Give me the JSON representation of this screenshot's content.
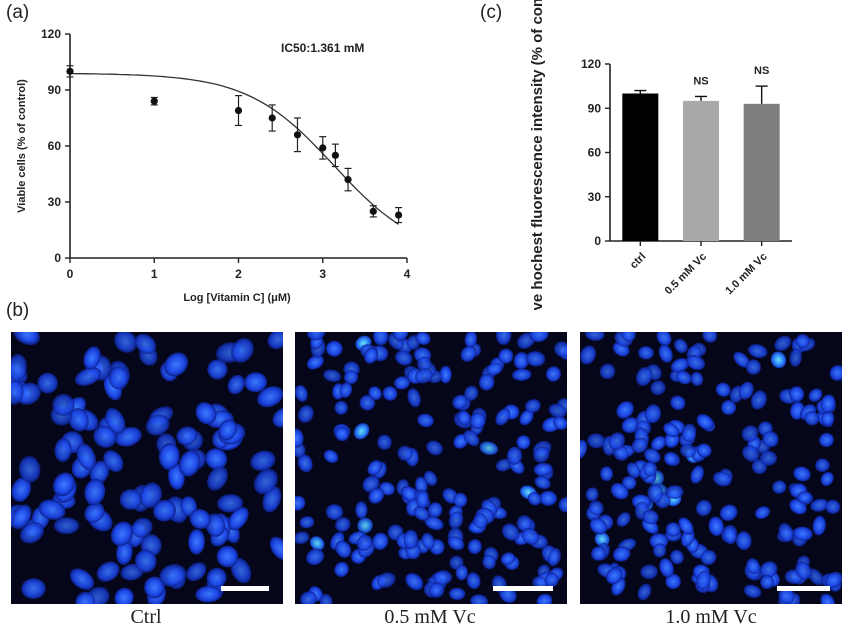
{
  "panels": {
    "a": "(a)",
    "b": "(b)",
    "c": "(c)"
  },
  "chart_data": [
    {
      "type": "scatter",
      "panel": "(a)",
      "annotation": "IC50:1.361 mM",
      "xlabel": "Log [Vitamin C] (μM)",
      "ylabel": "Viable cells (% of control)",
      "xlim": [
        0,
        4
      ],
      "ylim": [
        0,
        120
      ],
      "xticks": [
        0,
        1,
        2,
        3,
        4
      ],
      "yticks": [
        0,
        30,
        60,
        90,
        120
      ],
      "points": [
        {
          "x": 0,
          "y": 100,
          "err": 3
        },
        {
          "x": 1,
          "y": 84,
          "err": 2
        },
        {
          "x": 2,
          "y": 79,
          "err": 8
        },
        {
          "x": 2.4,
          "y": 75,
          "err": 7
        },
        {
          "x": 2.7,
          "y": 66,
          "err": 9
        },
        {
          "x": 3,
          "y": 59,
          "err": 6
        },
        {
          "x": 3.15,
          "y": 55,
          "err": 6
        },
        {
          "x": 3.3,
          "y": 42,
          "err": 6
        },
        {
          "x": 3.6,
          "y": 25,
          "err": 3
        },
        {
          "x": 3.9,
          "y": 23,
          "err": 4
        }
      ],
      "fit": {
        "top": 99,
        "bottom": 0,
        "log_ic50": 3.134,
        "hill": -0.85
      }
    },
    {
      "type": "bar",
      "panel": "(c)",
      "categories": [
        "ctrl",
        "0.5 mM Vc",
        "1.0 mM Vc"
      ],
      "values": [
        100,
        95,
        93
      ],
      "errors": [
        2,
        3,
        12
      ],
      "labels": [
        "",
        "NS",
        "NS"
      ],
      "colors": [
        "#000000",
        "#a9a9ab",
        "#7d7d7f"
      ],
      "ylabel": "Relative hochest fluorescence intensity (% of control)",
      "ylim": [
        0,
        120
      ],
      "yticks": [
        0,
        30,
        60,
        90,
        120
      ]
    }
  ],
  "micrographs": [
    {
      "caption": "Ctrl"
    },
    {
      "caption": "0.5 mM Vc"
    },
    {
      "caption": "1.0 mM Vc"
    }
  ]
}
